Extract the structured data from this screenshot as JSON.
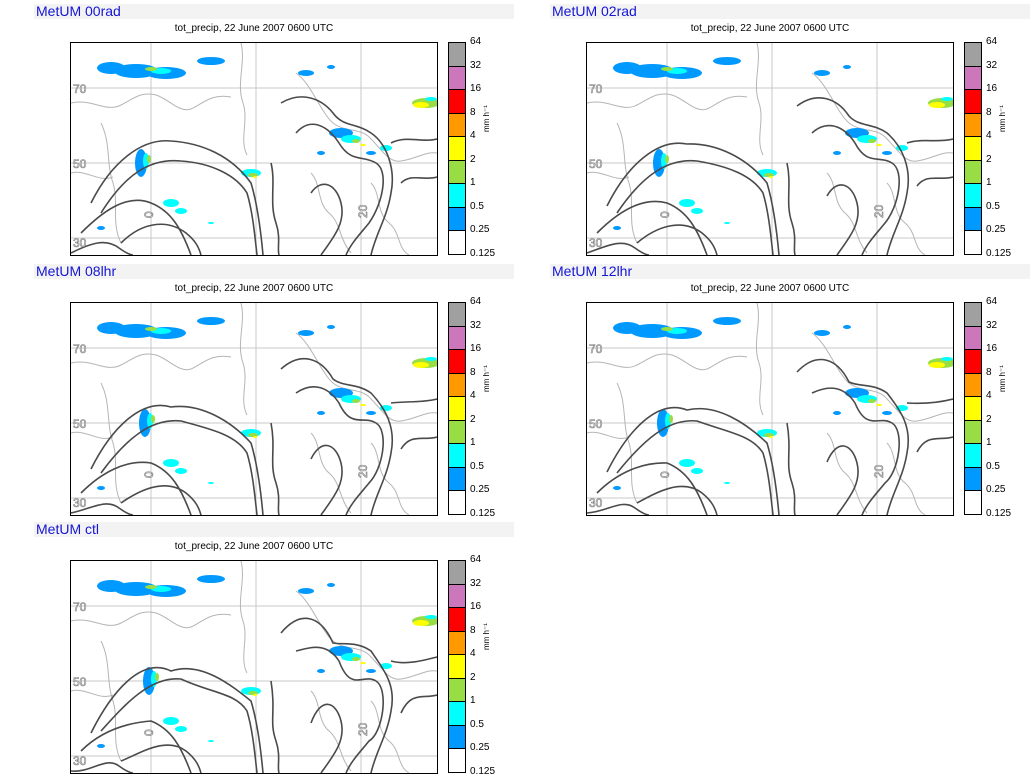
{
  "panels": [
    {
      "title": "MetUM 00rad",
      "subtitle": "tot_precip, 22 June 2007 0600 UTC",
      "variant": 0
    },
    {
      "title": "MetUM 02rad",
      "subtitle": "tot_precip, 22 June 2007 0600 UTC",
      "variant": 1
    },
    {
      "title": "MetUM 08lhr",
      "subtitle": "tot_precip, 22 June 2007 0600 UTC",
      "variant": 2
    },
    {
      "title": "MetUM 12lhr",
      "subtitle": "tot_precip, 22 June 2007 0600 UTC",
      "variant": 3
    },
    {
      "title": "MetUM ctl",
      "subtitle": "tot_precip, 22 June 2007 0600 UTC",
      "variant": 4
    }
  ],
  "colorbar": {
    "units": "mm h⁻¹",
    "levels": [
      "64",
      "32",
      "16",
      "8",
      "4",
      "2",
      "1",
      "0.5",
      "0.25",
      "0.125"
    ],
    "colors": [
      "#a0a0a0",
      "#cc77bb",
      "#ff0000",
      "#ff9900",
      "#ffff00",
      "#99dd44",
      "#00ffff",
      "#0099ff",
      "#ffffff"
    ]
  },
  "map": {
    "lat_labels": [
      "70",
      "50",
      "30"
    ],
    "lon_labels": [
      "0",
      "20"
    ]
  }
}
